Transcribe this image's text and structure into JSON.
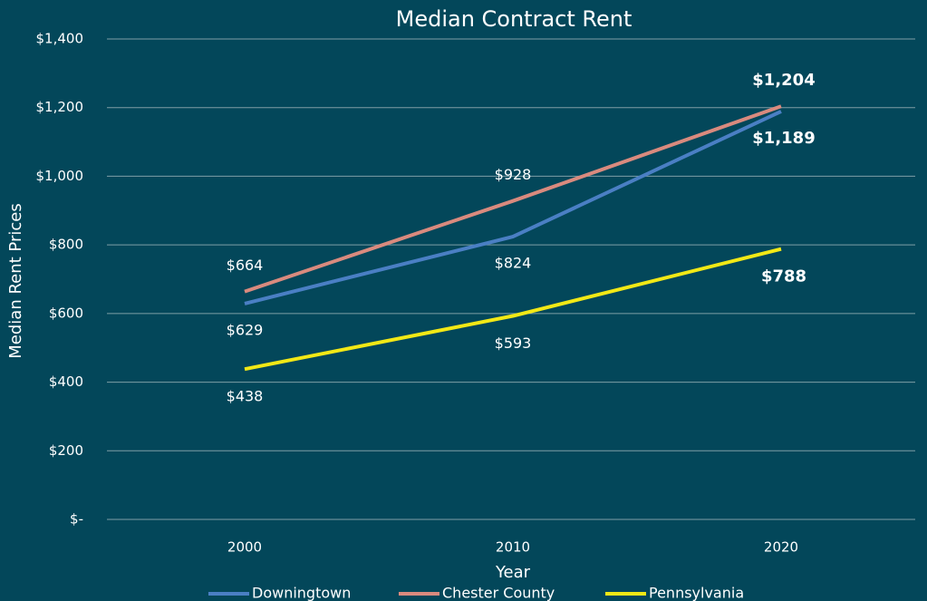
{
  "chart_data": {
    "type": "line",
    "title": "Median Contract Rent",
    "x_label": "Year",
    "y_label": "Median Rent Prices",
    "categories": [
      "2000",
      "2010",
      "2020"
    ],
    "series": [
      {
        "name": "Downingtown",
        "color": "#4a7fc4",
        "values": [
          629,
          824,
          1189
        ],
        "value_labels": [
          "$629",
          "$824",
          "$1,189"
        ]
      },
      {
        "name": "Chester County",
        "color": "#d98a7e",
        "values": [
          664,
          928,
          1204
        ],
        "value_labels": [
          "$664",
          "$928",
          "$1,204"
        ]
      },
      {
        "name": "Pennsylvania",
        "color": "#f2e816",
        "values": [
          438,
          593,
          788
        ],
        "value_labels": [
          "$438",
          "$593",
          "$788"
        ]
      }
    ],
    "ylim": [
      0,
      1400
    ],
    "yticks": [
      {
        "value": 0,
        "label": "$-"
      },
      {
        "value": 200,
        "label": "$200"
      },
      {
        "value": 400,
        "label": "$400"
      },
      {
        "value": 600,
        "label": "$600"
      },
      {
        "value": 800,
        "label": "$800"
      },
      {
        "value": 1000,
        "label": "$1,000"
      },
      {
        "value": 1200,
        "label": "$1,200"
      },
      {
        "value": 1400,
        "label": "$1,400"
      }
    ],
    "grid": true,
    "legend": "bottom"
  }
}
